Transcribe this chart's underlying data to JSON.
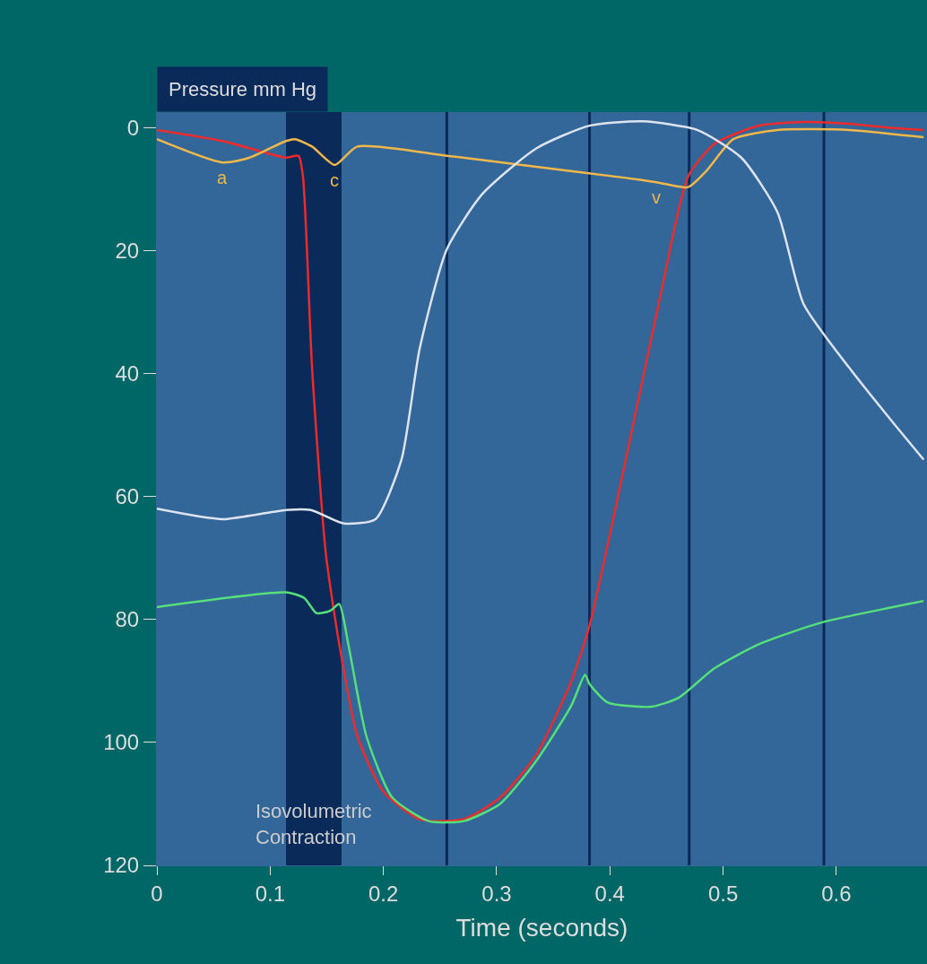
{
  "chart_data": {
    "type": "line",
    "xlabel": "Time (seconds)",
    "ylabel": "Pressure mm Hg",
    "grid": false,
    "marker": "none",
    "line_style": "solid",
    "xlim": [
      0,
      0.68
    ],
    "xticks": [
      0,
      0.1,
      0.2,
      0.3,
      0.4,
      0.5,
      0.6
    ],
    "ylim": [
      120,
      -2.5
    ],
    "yticks": [
      0,
      20,
      40,
      60,
      80,
      100,
      120
    ],
    "series": [
      {
        "color": "#ee2a2a",
        "x": [
          0,
          0.058,
          0.114,
          0.125,
          0.129,
          0.137,
          0.149,
          0.161,
          0.177,
          0.2,
          0.232,
          0.271,
          0.303,
          0.335,
          0.366,
          0.382,
          0.414,
          0.445,
          0.469,
          0.492,
          0.532,
          0.571,
          0.611,
          0.65,
          0.677
        ],
        "values": [
          0.4,
          2.2,
          4.9,
          4.6,
          8,
          39,
          69,
          84,
          99,
          108,
          112.5,
          112.5,
          109,
          102,
          90,
          81,
          54,
          27,
          8,
          2.7,
          -0.3,
          -0.9,
          -0.6,
          0.1,
          0.4
        ]
      },
      {
        "color": "#55e07a",
        "x": [
          0,
          0.114,
          0.13,
          0.141,
          0.153,
          0.161,
          0.169,
          0.185,
          0.208,
          0.24,
          0.271,
          0.303,
          0.335,
          0.366,
          0.378,
          0.382,
          0.398,
          0.437,
          0.461,
          0.492,
          0.532,
          0.587,
          0.65,
          0.677
        ],
        "values": [
          78,
          75.6,
          76.5,
          79,
          78.6,
          77.5,
          84,
          99,
          109,
          112.8,
          112.8,
          110,
          103,
          94,
          89,
          90.5,
          93.5,
          94.2,
          92.7,
          88,
          84,
          80.5,
          78,
          77
        ]
      },
      {
        "color": "#f0b84a",
        "x": [
          0,
          0.058,
          0.082,
          0.114,
          0.122,
          0.137,
          0.157,
          0.177,
          0.256,
          0.335,
          0.414,
          0.441,
          0.469,
          0.485,
          0.509,
          0.548,
          0.611,
          0.677
        ],
        "values": [
          1.9,
          5.7,
          4.9,
          2.2,
          1.9,
          3.1,
          6.1,
          3.1,
          4.6,
          6.4,
          8.2,
          8.9,
          9.7,
          7.1,
          1.9,
          0.4,
          0.4,
          1.6
        ]
      },
      {
        "color": "#dde4f0",
        "x": [
          0,
          0.058,
          0.114,
          0.136,
          0.165,
          0.193,
          0.216,
          0.232,
          0.256,
          0.287,
          0.335,
          0.382,
          0.429,
          0.477,
          0.516,
          0.548,
          0.571,
          0.611,
          0.65,
          0.677
        ],
        "values": [
          62,
          63.7,
          62.2,
          62.2,
          64.4,
          63.7,
          54,
          36,
          19.8,
          10.9,
          3.4,
          -0.3,
          -1,
          0.4,
          4.9,
          13.8,
          28.7,
          39,
          48,
          54
        ]
      }
    ],
    "bands": [
      {
        "axis": "x",
        "from": 0.114,
        "to": 0.163,
        "label": "Isovolumetric Contraction",
        "color": "#0a2a5a"
      }
    ],
    "ref_lines": [
      {
        "axis": "x",
        "value": 0.256,
        "color": "#0a2a5a"
      },
      {
        "axis": "x",
        "value": 0.382,
        "color": "#0a2a5a"
      },
      {
        "axis": "x",
        "value": 0.47,
        "color": "#0a2a5a"
      },
      {
        "axis": "x",
        "value": 0.589,
        "color": "#0a2a5a"
      }
    ],
    "annotations": [
      {
        "text": "a",
        "x": 0.058,
        "y": 5.7
      },
      {
        "text": "c",
        "x": 0.157,
        "y": 6.1
      },
      {
        "text": "v",
        "x": 0.441,
        "y": 8.9
      }
    ]
  }
}
